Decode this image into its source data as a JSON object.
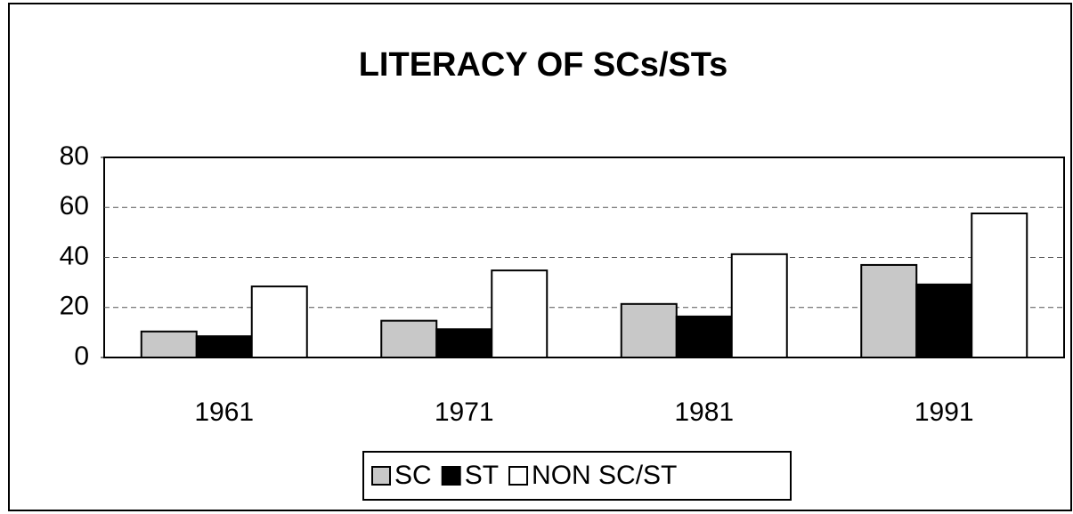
{
  "chart_data": {
    "type": "bar",
    "title": "LITERACY OF SCs/STs",
    "categories": [
      "1961",
      "1971",
      "1981",
      "1991"
    ],
    "series": [
      {
        "name": "SC",
        "color": "#c8c8c8",
        "values": [
          10.4,
          14.7,
          21.4,
          37.0
        ]
      },
      {
        "name": "ST",
        "color": "#000000",
        "values": [
          8.5,
          11.3,
          16.4,
          29.2
        ]
      },
      {
        "name": "NON SC/ST",
        "color": "#ffffff",
        "values": [
          28.4,
          34.8,
          41.3,
          57.6
        ]
      }
    ],
    "ylim": [
      0,
      80
    ],
    "yticks": [
      0,
      20,
      40,
      60,
      80
    ],
    "grid": true,
    "legend": "bottom"
  }
}
